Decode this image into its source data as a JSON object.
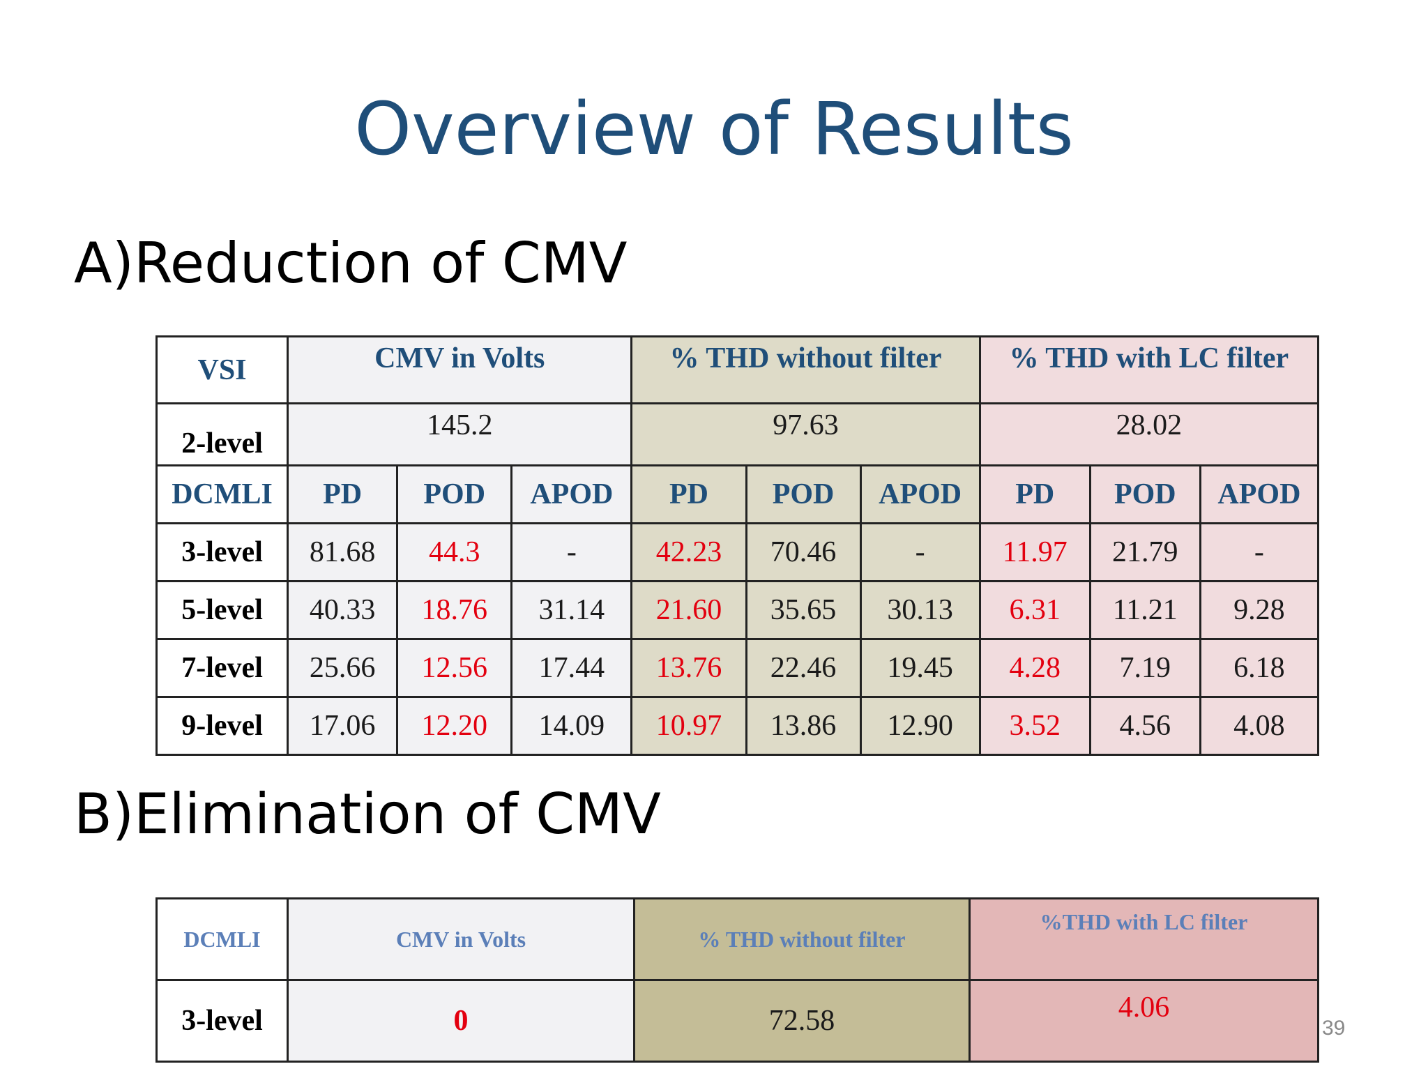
{
  "title": "Overview of Results",
  "sectionA": {
    "title": "A)Reduction of CMV",
    "table": {
      "header": {
        "vsi": "VSI",
        "groups": [
          "CMV in Volts",
          "% THD without filter",
          "% THD with LC filter"
        ]
      },
      "two_level": {
        "label": "2-level",
        "values": [
          "145.2",
          "97.63",
          "28.02"
        ]
      },
      "subheader": {
        "label": "DCMLI",
        "cols": [
          "PD",
          "POD",
          "APOD",
          "PD",
          "POD",
          "APOD",
          "PD",
          "POD",
          "APOD"
        ]
      },
      "rows": [
        {
          "label": "3-level",
          "values": [
            "81.68",
            "44.3",
            "-",
            "42.23",
            "70.46",
            "-",
            "11.97",
            "21.79",
            "-"
          ]
        },
        {
          "label": "5-level",
          "values": [
            "40.33",
            "18.76",
            "31.14",
            "21.60",
            "35.65",
            "30.13",
            "6.31",
            "11.21",
            "9.28"
          ]
        },
        {
          "label": "7-level",
          "values": [
            "25.66",
            "12.56",
            "17.44",
            "13.76",
            "22.46",
            "19.45",
            "4.28",
            "7.19",
            "6.18"
          ]
        },
        {
          "label": "9-level",
          "values": [
            "17.06",
            "12.20",
            "14.09",
            "10.97",
            "13.86",
            "12.90",
            "3.52",
            "4.56",
            "4.08"
          ]
        }
      ],
      "highlight_color": "#E3000F"
    }
  },
  "sectionB": {
    "title": "B)Elimination of CMV",
    "table": {
      "headers": [
        "DCMLI",
        "CMV in Volts",
        "% THD without filter",
        "%THD with LC filter"
      ],
      "row": {
        "label": "3-level",
        "values": [
          "0",
          "72.58",
          "4.06"
        ]
      }
    }
  },
  "page_number": "39",
  "colors": {
    "title": "#1F4E79",
    "header_text": "#1F4E79",
    "header_text_b": "#5B7FB8",
    "group_cmv": "#F2F2F4",
    "group_thd": "#DEDBC8",
    "group_lc": "#F1DCDE"
  }
}
